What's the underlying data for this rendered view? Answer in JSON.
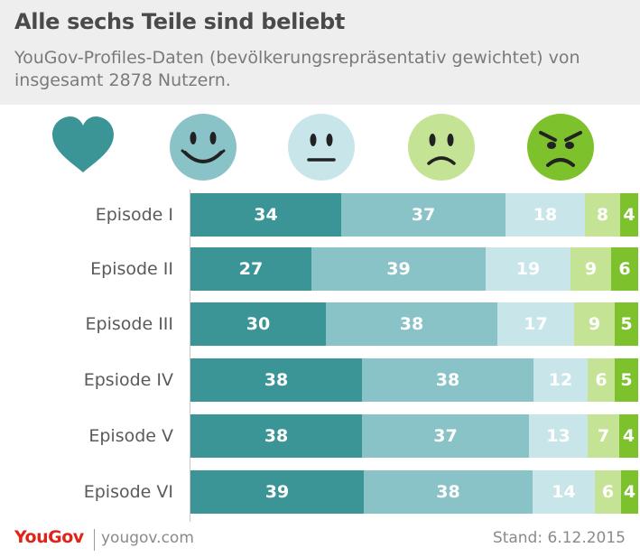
{
  "header": {
    "title": "Alle sechs Teile sind beliebt",
    "subtitle": "YouGov-Profiles-Daten (bevölkerungsrepräsentativ gewichtet) von insgesamt 2878 Nutzern."
  },
  "legend_icons": [
    {
      "name": "heart-icon",
      "color": "#3b9597"
    },
    {
      "name": "very-happy-face-icon",
      "color": "#89c3c8"
    },
    {
      "name": "neutral-face-icon",
      "color": "#c8e6ea"
    },
    {
      "name": "sad-face-icon",
      "color": "#c5e394"
    },
    {
      "name": "angry-face-icon",
      "color": "#7dc12c"
    }
  ],
  "chart_data": {
    "type": "bar",
    "orientation": "horizontal",
    "stacked": true,
    "categories": [
      "Episode I",
      "Episode II",
      "Episode III",
      "Epsiode IV",
      "Episode V",
      "Episode VI"
    ],
    "series": [
      {
        "values": [
          34,
          27,
          30,
          38,
          38,
          39
        ],
        "color": "#3b9597",
        "label_color": "#ffffff"
      },
      {
        "values": [
          37,
          39,
          38,
          38,
          37,
          38
        ],
        "color": "#89c3c8",
        "label_color": "#ffffff"
      },
      {
        "values": [
          18,
          19,
          17,
          12,
          13,
          14
        ],
        "color": "#c8e6ea",
        "label_color": "#ffffff"
      },
      {
        "values": [
          8,
          9,
          9,
          6,
          7,
          6
        ],
        "color": "#c5e394",
        "label_color": "#ffffff"
      },
      {
        "values": [
          4,
          6,
          5,
          5,
          4,
          4
        ],
        "color": "#7dc12c",
        "label_color": "#ffffff"
      }
    ],
    "xlim": [
      0,
      100
    ],
    "grid": false,
    "xlabel": "",
    "ylabel": ""
  },
  "footer": {
    "logo": "YouGov",
    "url": "yougov.com",
    "date": "Stand: 6.12.2015"
  }
}
